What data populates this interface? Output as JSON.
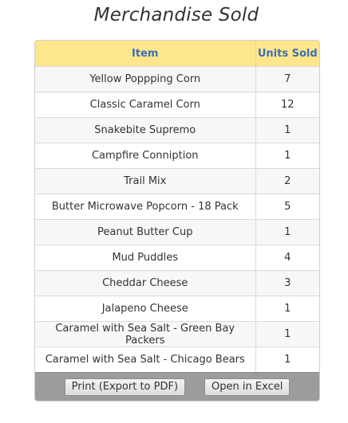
{
  "title": "Merchandise Sold",
  "table": {
    "headers": {
      "item": "Item",
      "units": "Units Sold"
    },
    "rows": [
      {
        "item": "Yellow Poppping Corn",
        "units": "7"
      },
      {
        "item": "Classic Caramel Corn",
        "units": "12"
      },
      {
        "item": "Snakebite Supremo",
        "units": "1"
      },
      {
        "item": "Campfire Conniption",
        "units": "1"
      },
      {
        "item": "Trail Mix",
        "units": "2"
      },
      {
        "item": "Butter Microwave Popcorn - 18 Pack",
        "units": "5"
      },
      {
        "item": "Peanut Butter Cup",
        "units": "1"
      },
      {
        "item": "Mud Puddles",
        "units": "4"
      },
      {
        "item": "Cheddar Cheese",
        "units": "3"
      },
      {
        "item": "Jalapeno Cheese",
        "units": "1"
      },
      {
        "item": "Caramel with Sea Salt - Green Bay Packers",
        "units": "1"
      },
      {
        "item": "Caramel with Sea Salt - Chicago Bears",
        "units": "1"
      }
    ]
  },
  "footer": {
    "print_label": "Print (Export to PDF)",
    "excel_label": "Open in Excel"
  },
  "colors": {
    "header_bg": "#fde68c",
    "header_text": "#3d6fb2",
    "footer_bg": "#9c9c9c"
  }
}
